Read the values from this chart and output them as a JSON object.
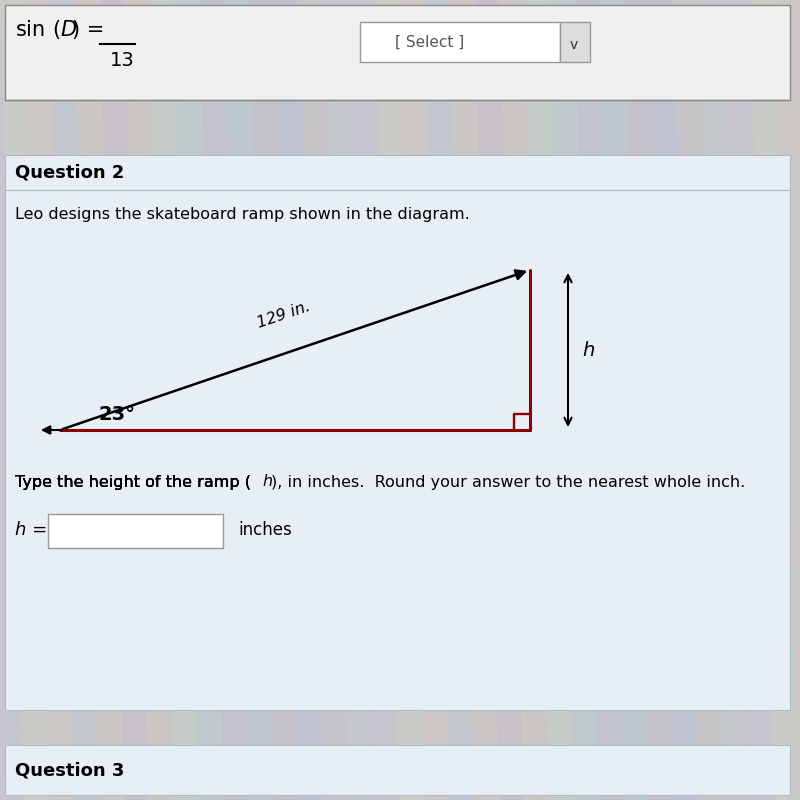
{
  "question_label": "Question 2",
  "description": "Leo designs the skateboard ramp shown in the diagram.",
  "triangle_color": "#8b0000",
  "triangle_lw": 2.2,
  "hypotenuse_label": "129 in.",
  "angle_label": "23°",
  "height_label": "h",
  "instruction_text1": "Type the height of the ramp (",
  "instruction_h": "h",
  "instruction_text2": "), in inches.  Round your answer to the nearest whole inch.",
  "input_label": "h =",
  "input_unit": "inches",
  "question3_label": "Question 3",
  "bg_stripe_colors": [
    "#c8d0e0",
    "#d8c8d8",
    "#c8d8c8",
    "#d0c8e0",
    "#c8d8e0",
    "#e0d0c8"
  ],
  "section_bg": "#e8eef5",
  "header_bg": "#dde4ec",
  "top_area_bg": "#dce4ee",
  "sin_text": "sin(D) =",
  "sin_denom": "13",
  "select_text": "[ Select ]"
}
